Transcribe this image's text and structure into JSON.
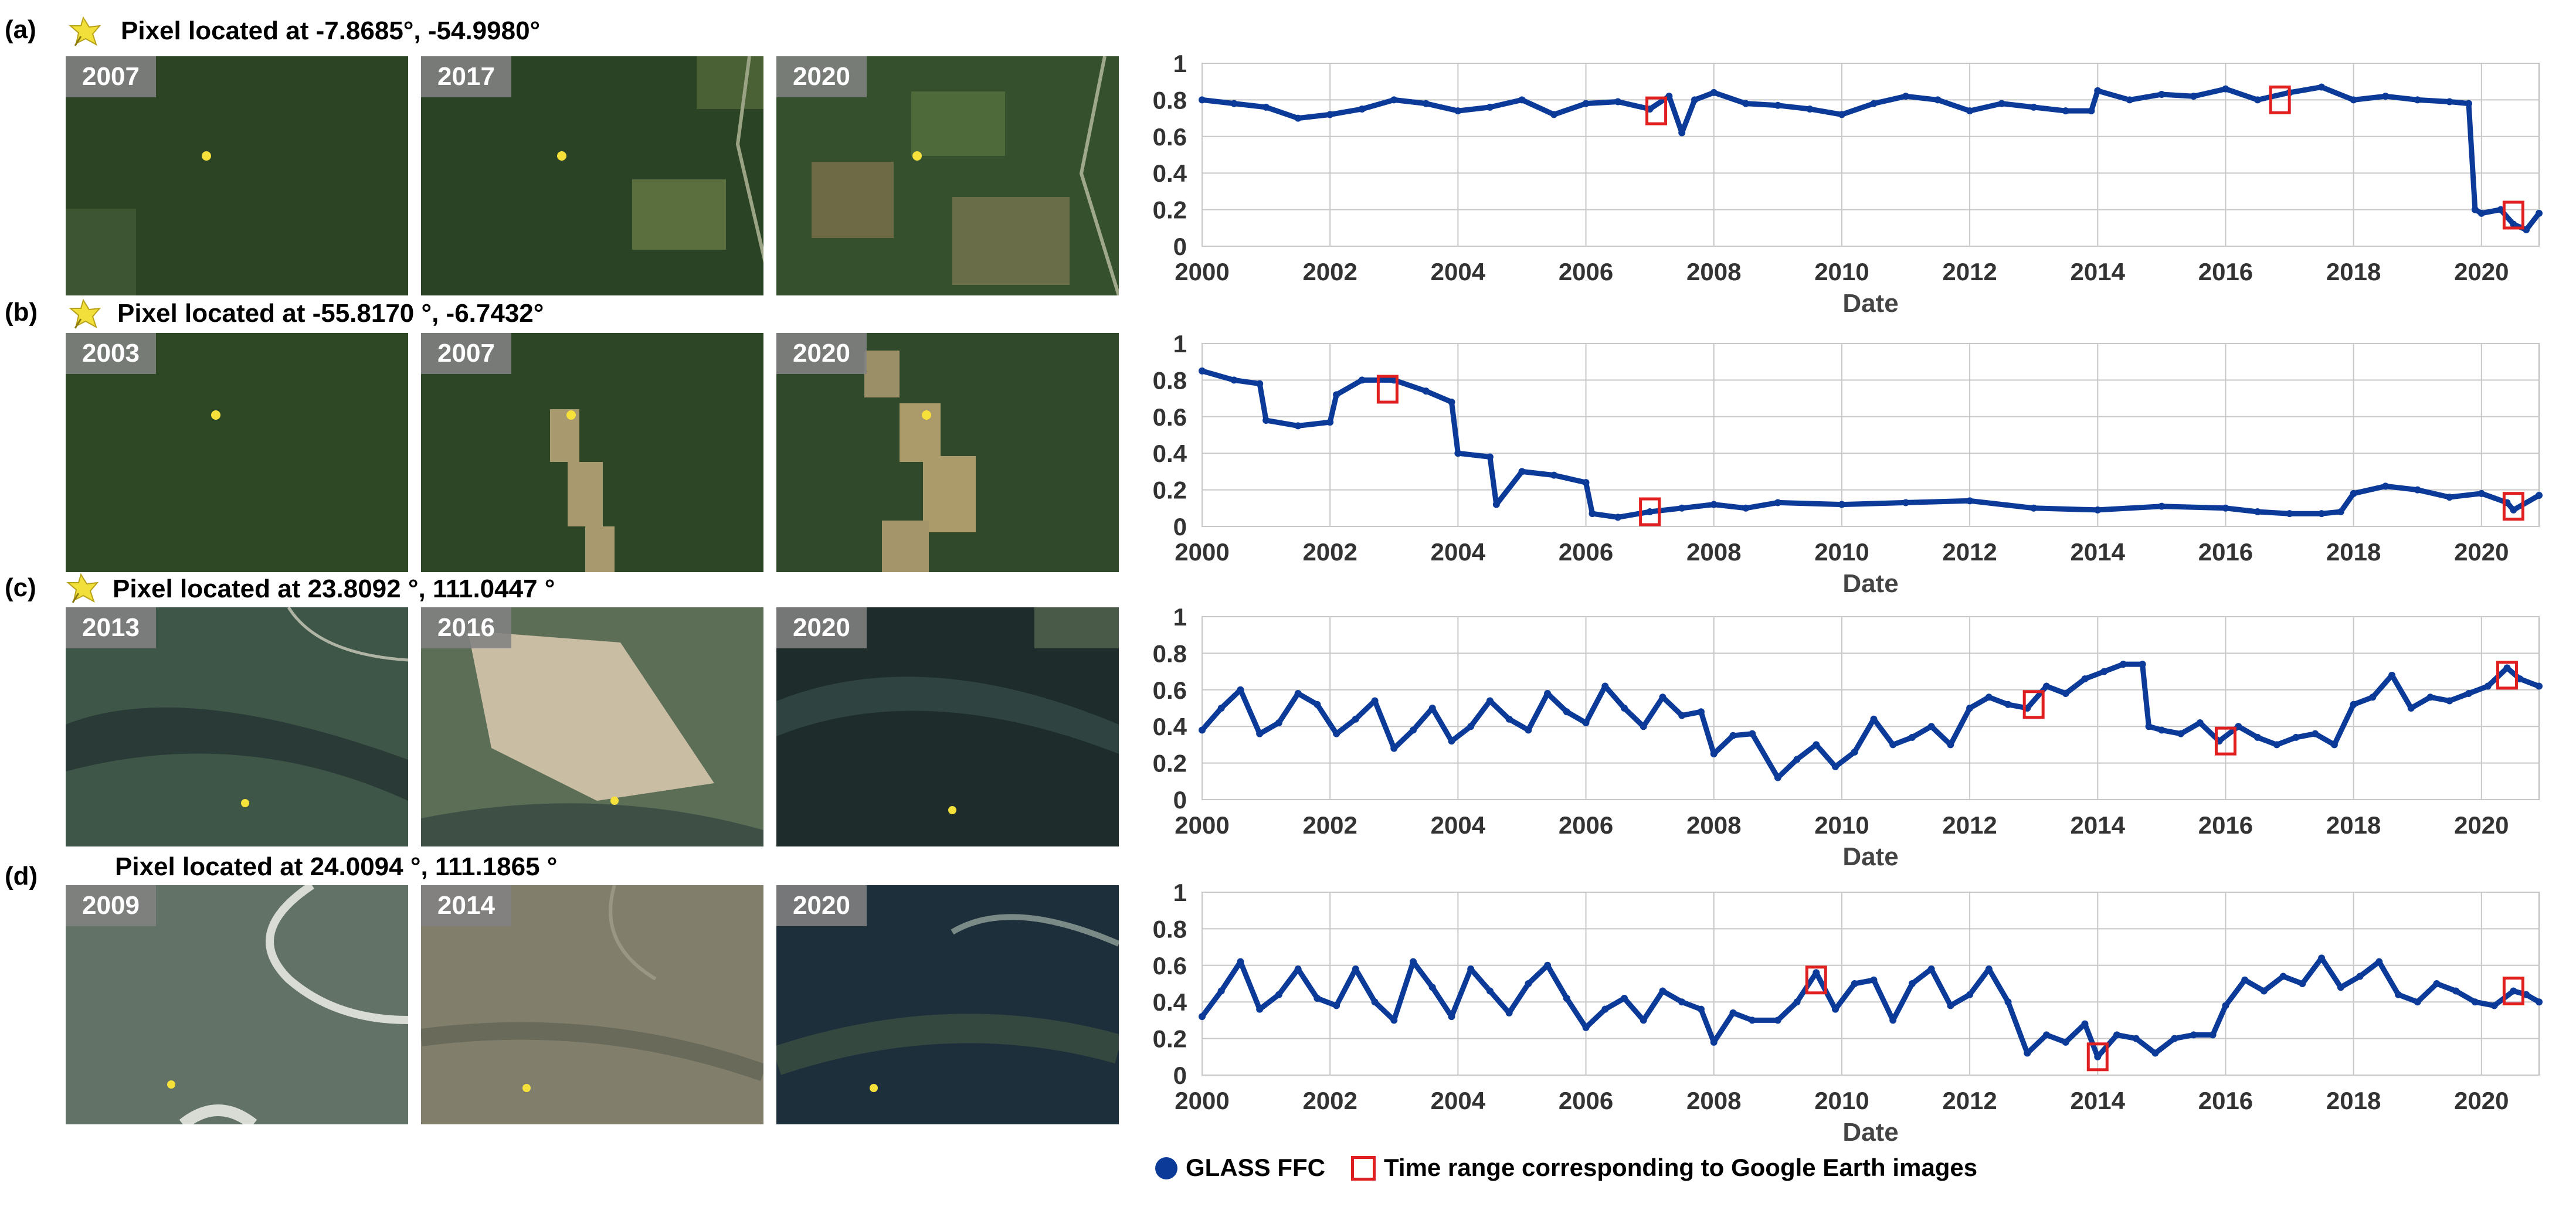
{
  "legend": {
    "series_label": "GLASS FFC",
    "box_label": "Time range corresponding to Google Earth images",
    "series_color": "#0b3a99",
    "box_color": "#e02020"
  },
  "panels": [
    {
      "label": "(a)",
      "title": "Pixel located at -7.8685°, -54.9980°",
      "show_pin": true,
      "years": [
        "2007",
        "2017",
        "2020"
      ]
    },
    {
      "label": "(b)",
      "title": "Pixel located at -55.8170 °, -6.7432°",
      "show_pin": true,
      "years": [
        "2003",
        "2007",
        "2020"
      ]
    },
    {
      "label": "(c)",
      "title": "Pixel located at 23.8092 °, 111.0447 °",
      "show_pin": true,
      "years": [
        "2013",
        "2016",
        "2020"
      ]
    },
    {
      "label": "(d)",
      "title": "Pixel located at 24.0094 °, 111.1865 °",
      "show_pin": false,
      "years": [
        "2009",
        "2014",
        "2020"
      ]
    }
  ],
  "chart_data": [
    {
      "type": "line",
      "panel": "(a)",
      "xlabel": "Date",
      "ylabel": "",
      "xlim": [
        2000,
        2020.9
      ],
      "ylim": [
        0,
        1
      ],
      "xticks": [
        2000,
        2002,
        2004,
        2006,
        2008,
        2010,
        2012,
        2014,
        2016,
        2018,
        2020
      ],
      "yticks": [
        "0",
        "0.2",
        "0.4",
        "0.6",
        "0.8",
        "1"
      ],
      "series": [
        {
          "name": "GLASS FFC",
          "x": [
            2000.0,
            2000.5,
            2001.0,
            2001.5,
            2002.0,
            2002.5,
            2003.0,
            2003.5,
            2004.0,
            2004.5,
            2005.0,
            2005.5,
            2006.0,
            2006.5,
            2007.0,
            2007.3,
            2007.5,
            2007.7,
            2008.0,
            2008.5,
            2009.0,
            2009.5,
            2010.0,
            2010.5,
            2011.0,
            2011.5,
            2012.0,
            2012.5,
            2013.0,
            2013.5,
            2013.9,
            2014.0,
            2014.5,
            2015.0,
            2015.5,
            2016.0,
            2016.5,
            2017.0,
            2017.5,
            2018.0,
            2018.5,
            2019.0,
            2019.5,
            2019.8,
            2019.9,
            2020.0,
            2020.3,
            2020.5,
            2020.7,
            2020.9
          ],
          "y": [
            0.8,
            0.78,
            0.76,
            0.7,
            0.72,
            0.75,
            0.8,
            0.78,
            0.74,
            0.76,
            0.8,
            0.72,
            0.78,
            0.79,
            0.75,
            0.82,
            0.62,
            0.8,
            0.84,
            0.78,
            0.77,
            0.75,
            0.72,
            0.78,
            0.82,
            0.8,
            0.74,
            0.78,
            0.76,
            0.74,
            0.74,
            0.85,
            0.8,
            0.83,
            0.82,
            0.86,
            0.8,
            0.84,
            0.87,
            0.8,
            0.82,
            0.8,
            0.79,
            0.78,
            0.2,
            0.18,
            0.2,
            0.12,
            0.09,
            0.18
          ]
        }
      ],
      "boxes": [
        {
          "x": 2007.1,
          "y": 0.74
        },
        {
          "x": 2016.85,
          "y": 0.8
        },
        {
          "x": 2020.5,
          "y": 0.17
        }
      ]
    },
    {
      "type": "line",
      "panel": "(b)",
      "xlabel": "Date",
      "ylabel": "",
      "xlim": [
        2000,
        2020.9
      ],
      "ylim": [
        0,
        1
      ],
      "xticks": [
        2000,
        2002,
        2004,
        2006,
        2008,
        2010,
        2012,
        2014,
        2016,
        2018,
        2020
      ],
      "yticks": [
        "0",
        "0.2",
        "0.4",
        "0.6",
        "0.8",
        "1"
      ],
      "series": [
        {
          "name": "GLASS FFC",
          "x": [
            2000.0,
            2000.5,
            2000.9,
            2001.0,
            2001.5,
            2002.0,
            2002.1,
            2002.5,
            2003.0,
            2003.5,
            2003.9,
            2004.0,
            2004.5,
            2004.6,
            2005.0,
            2005.5,
            2006.0,
            2006.1,
            2006.5,
            2007.0,
            2007.5,
            2008.0,
            2008.5,
            2009.0,
            2010.0,
            2011.0,
            2012.0,
            2013.0,
            2014.0,
            2015.0,
            2016.0,
            2016.5,
            2017.0,
            2017.5,
            2017.8,
            2018.0,
            2018.5,
            2019.0,
            2019.5,
            2020.0,
            2020.4,
            2020.5,
            2020.9
          ],
          "y": [
            0.85,
            0.8,
            0.78,
            0.58,
            0.55,
            0.57,
            0.72,
            0.8,
            0.8,
            0.74,
            0.68,
            0.4,
            0.38,
            0.12,
            0.3,
            0.28,
            0.24,
            0.07,
            0.05,
            0.08,
            0.1,
            0.12,
            0.1,
            0.13,
            0.12,
            0.13,
            0.14,
            0.1,
            0.09,
            0.11,
            0.1,
            0.08,
            0.07,
            0.07,
            0.08,
            0.18,
            0.22,
            0.2,
            0.16,
            0.18,
            0.13,
            0.09,
            0.17
          ]
        }
      ],
      "boxes": [
        {
          "x": 2002.9,
          "y": 0.75
        },
        {
          "x": 2007.0,
          "y": 0.08
        },
        {
          "x": 2020.5,
          "y": 0.11
        }
      ]
    },
    {
      "type": "line",
      "panel": "(c)",
      "xlabel": "Date",
      "ylabel": "",
      "xlim": [
        2000,
        2020.9
      ],
      "ylim": [
        0,
        1
      ],
      "xticks": [
        2000,
        2002,
        2004,
        2006,
        2008,
        2010,
        2012,
        2014,
        2016,
        2018,
        2020
      ],
      "yticks": [
        "0",
        "0.2",
        "0.4",
        "0.6",
        "0.8",
        "1"
      ],
      "series": [
        {
          "name": "GLASS FFC",
          "x": [
            2000.0,
            2000.3,
            2000.6,
            2000.9,
            2001.2,
            2001.5,
            2001.8,
            2002.1,
            2002.4,
            2002.7,
            2003.0,
            2003.3,
            2003.6,
            2003.9,
            2004.2,
            2004.5,
            2004.8,
            2005.1,
            2005.4,
            2005.7,
            2006.0,
            2006.3,
            2006.6,
            2006.9,
            2007.2,
            2007.5,
            2007.8,
            2008.0,
            2008.3,
            2008.6,
            2009.0,
            2009.3,
            2009.6,
            2009.9,
            2010.2,
            2010.5,
            2010.8,
            2011.1,
            2011.4,
            2011.7,
            2012.0,
            2012.3,
            2012.6,
            2012.9,
            2013.2,
            2013.5,
            2013.8,
            2014.1,
            2014.4,
            2014.7,
            2014.8,
            2015.0,
            2015.3,
            2015.6,
            2015.9,
            2016.2,
            2016.5,
            2016.8,
            2017.1,
            2017.4,
            2017.7,
            2018.0,
            2018.3,
            2018.6,
            2018.9,
            2019.2,
            2019.5,
            2019.8,
            2020.1,
            2020.4,
            2020.6,
            2020.9
          ],
          "y": [
            0.38,
            0.5,
            0.6,
            0.36,
            0.42,
            0.58,
            0.52,
            0.36,
            0.44,
            0.54,
            0.28,
            0.38,
            0.5,
            0.32,
            0.4,
            0.54,
            0.44,
            0.38,
            0.58,
            0.48,
            0.42,
            0.62,
            0.5,
            0.4,
            0.56,
            0.46,
            0.48,
            0.25,
            0.35,
            0.36,
            0.12,
            0.22,
            0.3,
            0.18,
            0.26,
            0.44,
            0.3,
            0.34,
            0.4,
            0.3,
            0.5,
            0.56,
            0.52,
            0.5,
            0.62,
            0.58,
            0.66,
            0.7,
            0.74,
            0.74,
            0.4,
            0.38,
            0.36,
            0.42,
            0.32,
            0.4,
            0.34,
            0.3,
            0.34,
            0.36,
            0.3,
            0.52,
            0.56,
            0.68,
            0.5,
            0.56,
            0.54,
            0.58,
            0.62,
            0.72,
            0.66,
            0.62
          ]
        }
      ],
      "boxes": [
        {
          "x": 2013.0,
          "y": 0.52
        },
        {
          "x": 2016.0,
          "y": 0.32
        },
        {
          "x": 2020.4,
          "y": 0.68
        }
      ]
    },
    {
      "type": "line",
      "panel": "(d)",
      "xlabel": "Date",
      "ylabel": "",
      "xlim": [
        2000,
        2020.9
      ],
      "ylim": [
        0,
        1
      ],
      "xticks": [
        2000,
        2002,
        2004,
        2006,
        2008,
        2010,
        2012,
        2014,
        2016,
        2018,
        2020
      ],
      "yticks": [
        "0",
        "0.2",
        "0.4",
        "0.6",
        "0.8",
        "1"
      ],
      "series": [
        {
          "name": "GLASS FFC",
          "x": [
            2000.0,
            2000.3,
            2000.6,
            2000.9,
            2001.2,
            2001.5,
            2001.8,
            2002.1,
            2002.4,
            2002.7,
            2003.0,
            2003.3,
            2003.6,
            2003.9,
            2004.2,
            2004.5,
            2004.8,
            2005.1,
            2005.4,
            2005.7,
            2006.0,
            2006.3,
            2006.6,
            2006.9,
            2007.2,
            2007.5,
            2007.8,
            2008.0,
            2008.3,
            2008.6,
            2009.0,
            2009.3,
            2009.6,
            2009.9,
            2010.2,
            2010.5,
            2010.8,
            2011.1,
            2011.4,
            2011.7,
            2012.0,
            2012.3,
            2012.6,
            2012.9,
            2013.2,
            2013.5,
            2013.8,
            2014.0,
            2014.3,
            2014.6,
            2014.9,
            2015.2,
            2015.5,
            2015.8,
            2016.0,
            2016.3,
            2016.6,
            2016.9,
            2017.2,
            2017.5,
            2017.8,
            2018.1,
            2018.4,
            2018.7,
            2019.0,
            2019.3,
            2019.6,
            2019.9,
            2020.2,
            2020.5,
            2020.7,
            2020.9
          ],
          "y": [
            0.32,
            0.46,
            0.62,
            0.36,
            0.44,
            0.58,
            0.42,
            0.38,
            0.58,
            0.4,
            0.3,
            0.62,
            0.48,
            0.32,
            0.58,
            0.46,
            0.34,
            0.5,
            0.6,
            0.42,
            0.26,
            0.36,
            0.42,
            0.3,
            0.46,
            0.4,
            0.36,
            0.18,
            0.34,
            0.3,
            0.3,
            0.4,
            0.56,
            0.36,
            0.5,
            0.52,
            0.3,
            0.5,
            0.58,
            0.38,
            0.44,
            0.58,
            0.4,
            0.12,
            0.22,
            0.18,
            0.28,
            0.1,
            0.22,
            0.2,
            0.12,
            0.2,
            0.22,
            0.22,
            0.38,
            0.52,
            0.46,
            0.54,
            0.5,
            0.64,
            0.48,
            0.54,
            0.62,
            0.44,
            0.4,
            0.5,
            0.46,
            0.4,
            0.38,
            0.46,
            0.44,
            0.4
          ]
        }
      ],
      "boxes": [
        {
          "x": 2009.6,
          "y": 0.52
        },
        {
          "x": 2014.0,
          "y": 0.1
        },
        {
          "x": 2020.5,
          "y": 0.46
        }
      ]
    }
  ]
}
